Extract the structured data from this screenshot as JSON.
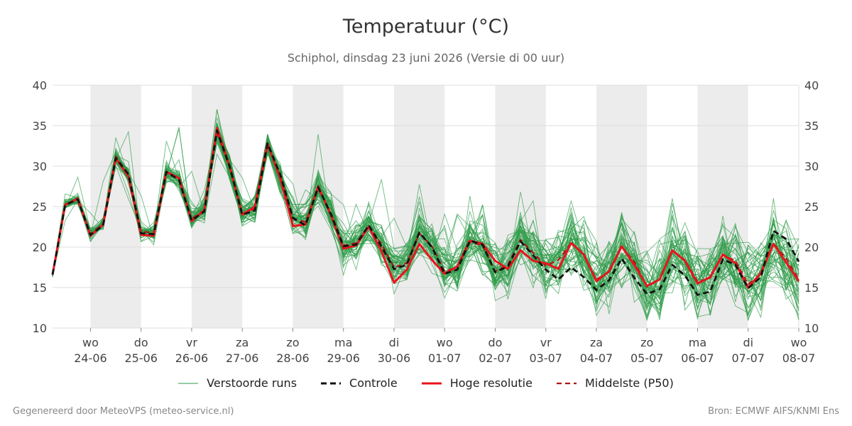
{
  "header": {
    "title": "Temperatuur (°C)",
    "subtitle": "Schiphol, dinsdag 23 juni 2026 (Versie di 00 uur)"
  },
  "footer": {
    "left": "Gegenereerd door MeteoVPS (meteo-service.nl)",
    "right": "Bron: ECMWF AIFS/KNMI Ens"
  },
  "colors": {
    "ensemble": "#2e9b48",
    "control": "#111111",
    "high_res": "#e8141c",
    "median": "#b01515",
    "band": "#ececec",
    "grid": "#dddddd"
  },
  "legend": [
    {
      "label": "Verstoorde runs",
      "style": "ensemble"
    },
    {
      "label": "Controle",
      "style": "control"
    },
    {
      "label": "Hoge resolutie",
      "style": "high_res"
    },
    {
      "label": "Middelste (P50)",
      "style": "median"
    }
  ],
  "chart_data": {
    "type": "line",
    "title": "Temperatuur (°C)",
    "ylim": [
      10,
      40
    ],
    "yticks": [
      10,
      15,
      20,
      25,
      30,
      35,
      40
    ],
    "grid": true,
    "legend_position": "bottom",
    "x_unit": "days since start of chart (00 uur)",
    "xlim": [
      -0.75,
      14.0
    ],
    "day_ticks": [
      {
        "day": "wo",
        "date": "24-06"
      },
      {
        "day": "do",
        "date": "25-06"
      },
      {
        "day": "vr",
        "date": "26-06"
      },
      {
        "day": "za",
        "date": "27-06"
      },
      {
        "day": "zo",
        "date": "28-06"
      },
      {
        "day": "ma",
        "date": "29-06"
      },
      {
        "day": "di",
        "date": "30-06"
      },
      {
        "day": "wo",
        "date": "01-07"
      },
      {
        "day": "do",
        "date": "02-07"
      },
      {
        "day": "vr",
        "date": "03-07"
      },
      {
        "day": "za",
        "date": "04-07"
      },
      {
        "day": "zo",
        "date": "05-07"
      },
      {
        "day": "ma",
        "date": "06-07"
      },
      {
        "day": "di",
        "date": "07-07"
      },
      {
        "day": "wo",
        "date": "08-07"
      }
    ],
    "x": [
      -0.75,
      -0.5,
      -0.25,
      0,
      0.25,
      0.5,
      0.75,
      1,
      1.25,
      1.5,
      1.75,
      2,
      2.25,
      2.5,
      2.75,
      3,
      3.25,
      3.5,
      3.75,
      4,
      4.25,
      4.5,
      4.75,
      5,
      5.25,
      5.5,
      5.75,
      6,
      6.25,
      6.5,
      6.75,
      7,
      7.25,
      7.5,
      7.75,
      8,
      8.25,
      8.5,
      8.75,
      9,
      9.25,
      9.5,
      9.75,
      10,
      10.25,
      10.5,
      10.75,
      11,
      11.25,
      11.5,
      11.75,
      12,
      12.25,
      12.5,
      12.75,
      13,
      13.25,
      13.5,
      13.75,
      14
    ],
    "series": [
      {
        "name": "Controle",
        "style": "control",
        "values": [
          16.6,
          25.2,
          25.9,
          21.5,
          22.7,
          31.0,
          29.0,
          21.7,
          21.6,
          29.3,
          28.3,
          23.3,
          24.4,
          34.4,
          30.0,
          24.0,
          24.5,
          32.8,
          29.0,
          23.6,
          22.7,
          27.4,
          24.1,
          20.1,
          20.3,
          22.7,
          20.1,
          17.3,
          17.8,
          21.8,
          20.0,
          16.7,
          17.2,
          20.8,
          20.3,
          16.9,
          17.6,
          20.7,
          19.0,
          17.2,
          16.0,
          17.5,
          16.3,
          14.7,
          15.9,
          18.6,
          16.2,
          14.2,
          14.8,
          17.8,
          16.5,
          14.1,
          14.5,
          18.5,
          17.8,
          14.9,
          16.3,
          22.0,
          21.0,
          18.2
        ]
      },
      {
        "name": "Hoge resolutie",
        "style": "high_res",
        "values": [
          16.6,
          25.2,
          26.0,
          21.4,
          22.8,
          31.0,
          28.7,
          21.5,
          21.4,
          29.3,
          28.5,
          23.2,
          24.6,
          34.7,
          30.0,
          24.0,
          25.0,
          32.8,
          28.5,
          22.6,
          22.8,
          27.5,
          24.0,
          19.8,
          20.2,
          22.5,
          19.5,
          15.6,
          17.2,
          20.4,
          18.4,
          16.7,
          17.6,
          20.8,
          20.4,
          18.3,
          17.3,
          19.6,
          18.3,
          18.0,
          17.3,
          20.5,
          19.1,
          15.8,
          17.0,
          20.1,
          17.8,
          15.2,
          16.0,
          19.6,
          18.3,
          15.5,
          16.3,
          19.1,
          18.0,
          15.0,
          16.8,
          20.4,
          18.1,
          15.8
        ]
      },
      {
        "name": "Middelste (P50)",
        "style": "median",
        "values": [
          16.6,
          25.3,
          25.8,
          21.6,
          22.9,
          31.2,
          28.9,
          21.9,
          21.8,
          29.2,
          28.4,
          23.5,
          24.6,
          34.2,
          29.8,
          24.2,
          24.7,
          32.5,
          28.8,
          23.5,
          23.1,
          27.2,
          24.3,
          20.2,
          20.5,
          22.6,
          20.4,
          17.5,
          18.0,
          21.7,
          20.1,
          17.0,
          17.5,
          20.6,
          20.2,
          17.0,
          17.8,
          20.9,
          19.3,
          17.7,
          18.4,
          20.5,
          19.0,
          16.0,
          16.9,
          20.0,
          18.2,
          15.1,
          16.0,
          19.5,
          18.4,
          15.7,
          16.2,
          19.0,
          18.3,
          15.4,
          16.6,
          20.4,
          18.6,
          16.0
        ]
      }
    ]
  }
}
